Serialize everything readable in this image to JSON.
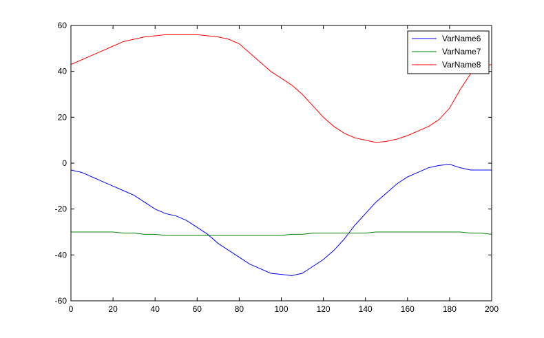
{
  "chart_data": {
    "type": "line",
    "title": "",
    "xlabel": "",
    "ylabel": "",
    "xlim": [
      0,
      200
    ],
    "ylim": [
      -60,
      60
    ],
    "x_ticks": [
      0,
      20,
      40,
      60,
      80,
      100,
      120,
      140,
      160,
      180,
      200
    ],
    "y_ticks": [
      -60,
      -40,
      -20,
      0,
      20,
      40,
      60
    ],
    "grid": false,
    "legend_position": "top-right",
    "x": [
      0,
      5,
      10,
      15,
      20,
      25,
      30,
      35,
      40,
      45,
      50,
      55,
      60,
      65,
      70,
      75,
      80,
      85,
      90,
      95,
      100,
      105,
      110,
      115,
      120,
      125,
      130,
      135,
      140,
      145,
      150,
      155,
      160,
      165,
      170,
      175,
      180,
      185,
      190,
      195,
      200
    ],
    "series": [
      {
        "name": "VarName6",
        "color": "#0000ff",
        "values": [
          -3,
          -4,
          -6,
          -8,
          -10,
          -12,
          -14,
          -17,
          -20,
          -22,
          -23,
          -25,
          -28,
          -31,
          -35,
          -38,
          -41,
          -44,
          -46,
          -48,
          -48.5,
          -49,
          -48,
          -45,
          -42,
          -38,
          -33,
          -27,
          -22,
          -17,
          -13,
          -9,
          -6,
          -4,
          -2,
          -1,
          -0.5,
          -2,
          -3,
          -3,
          -3
        ]
      },
      {
        "name": "VarName7",
        "color": "#008000",
        "values": [
          -30,
          -30,
          -30,
          -30,
          -30,
          -30.5,
          -30.5,
          -31,
          -31,
          -31.5,
          -31.5,
          -31.5,
          -31.5,
          -31.5,
          -31.5,
          -31.5,
          -31.5,
          -31.5,
          -31.5,
          -31.5,
          -31.5,
          -31,
          -31,
          -30.5,
          -30.5,
          -30.5,
          -30.5,
          -30.5,
          -30.5,
          -30,
          -30,
          -30,
          -30,
          -30,
          -30,
          -30,
          -30,
          -30,
          -30.5,
          -30.5,
          -31
        ]
      },
      {
        "name": "VarName8",
        "color": "#ff0000",
        "values": [
          43,
          45,
          47,
          49,
          51,
          53,
          54,
          55,
          55.5,
          56,
          56,
          56,
          56,
          55.5,
          55,
          54,
          52,
          48,
          44,
          40,
          37,
          34,
          30,
          25,
          20,
          16,
          13,
          11,
          10,
          9,
          9.5,
          10.5,
          12,
          14,
          16,
          19,
          24,
          32,
          39,
          42,
          43
        ]
      }
    ]
  }
}
